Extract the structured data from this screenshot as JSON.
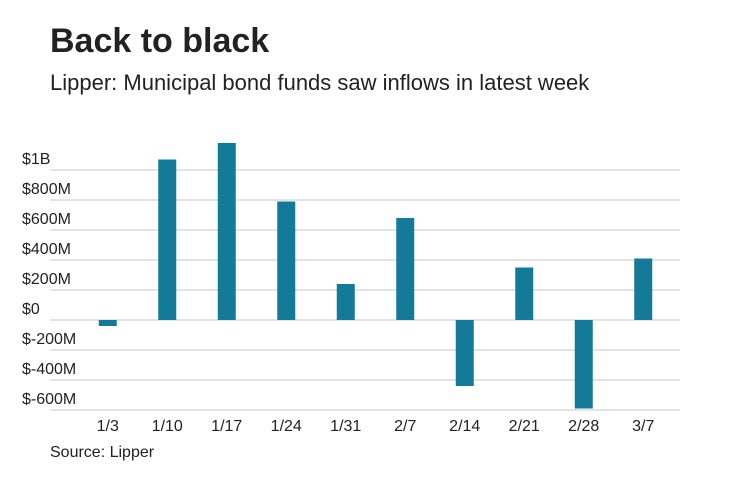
{
  "chart_data": {
    "type": "bar",
    "title": "Back to black",
    "subtitle": "Lipper: Municipal bond funds saw inflows in latest week",
    "source": "Source: Lipper",
    "categories": [
      "1/3",
      "1/10",
      "1/17",
      "1/24",
      "1/31",
      "2/7",
      "2/14",
      "2/21",
      "2/28",
      "3/7"
    ],
    "values": [
      -40000000,
      1070000000,
      1180000000,
      790000000,
      240000000,
      680000000,
      -440000000,
      350000000,
      -590000000,
      410000000
    ],
    "color": "#137b97",
    "ylim": [
      -600000000,
      1200000000
    ],
    "yticks": [
      {
        "value": 1000000000,
        "label": "$1B"
      },
      {
        "value": 800000000,
        "label": "$800M"
      },
      {
        "value": 600000000,
        "label": "$600M"
      },
      {
        "value": 400000000,
        "label": "$400M"
      },
      {
        "value": 200000000,
        "label": "$200M"
      },
      {
        "value": 0,
        "label": "$0"
      },
      {
        "value": -200000000,
        "label": "$-200M"
      },
      {
        "value": -400000000,
        "label": "$-400M"
      },
      {
        "value": -600000000,
        "label": "$-600M"
      }
    ],
    "grid": true
  }
}
